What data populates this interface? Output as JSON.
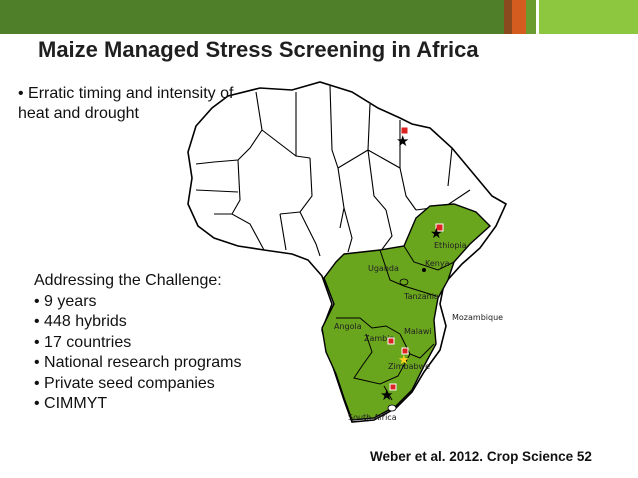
{
  "title": "Maize Managed Stress Screening in Africa",
  "intro_bullet": "• Erratic timing and intensity of heat and drought",
  "challenge": {
    "heading": "Addressing the Challenge:",
    "items": [
      "• 9 years",
      "• 448 hybrids",
      "• 17 countries",
      "• National research programs",
      "• Private seed companies",
      "• CIMMYT"
    ]
  },
  "citation": "Weber et al. 2012.  Crop Science 52",
  "map": {
    "countries": [
      "Ethiopia",
      "Kenya",
      "Uganda",
      "Tanzania",
      "Mozambique",
      "Angola",
      "Malawi",
      "Zambia",
      "Zimbabwe",
      "South Africa"
    ],
    "highlight_color": "#6aa51e",
    "outline_color": "#000000",
    "site_markers": [
      "star-icon",
      "site-square-icon"
    ]
  },
  "colors": {
    "header_green": "#4f7f28",
    "accent_orange": "#d45c1e",
    "accent_brown": "#8a4a1e",
    "accent_light_green": "#8dc63f"
  }
}
